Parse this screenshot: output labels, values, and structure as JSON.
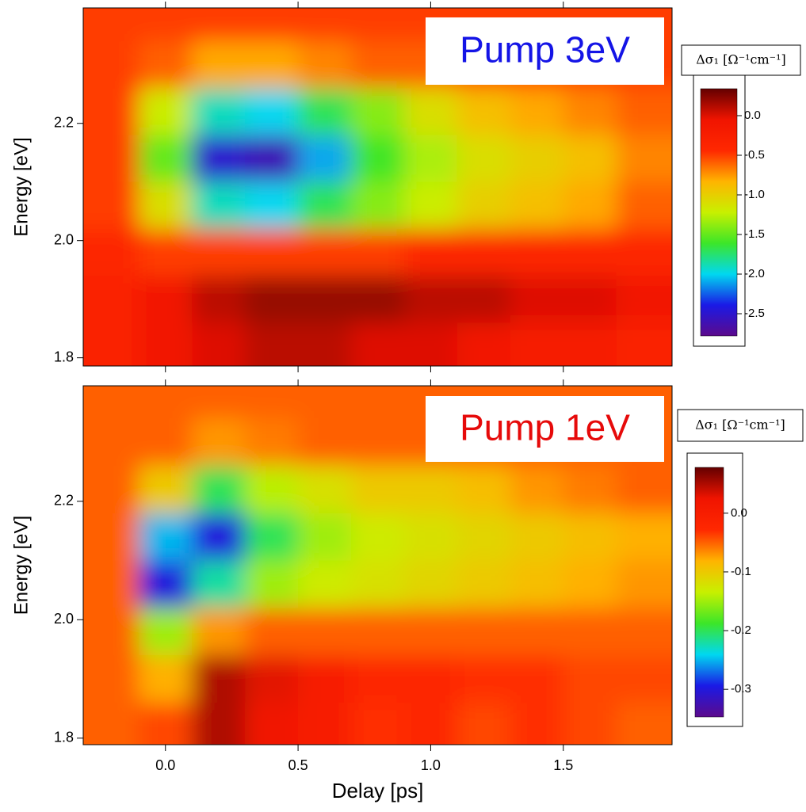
{
  "chart_data": [
    {
      "type": "heatmap",
      "ylabel": "Energy [eV]",
      "annotation": "Pump 3eV",
      "annotation_color": "#1414e6",
      "x": [
        -0.2,
        0,
        0.2,
        0.4,
        0.6,
        0.8,
        1.0,
        1.2,
        1.4,
        1.6,
        1.8
      ],
      "y": [
        1.82,
        1.9,
        1.98,
        2.06,
        2.14,
        2.22,
        2.3,
        2.38
      ],
      "z": [
        [
          -0.3,
          -0.1,
          0.0,
          0.1,
          0.1,
          0.0,
          0.0,
          -0.1,
          -0.2,
          -0.2,
          -0.3
        ],
        [
          -0.3,
          -0.1,
          0.1,
          0.2,
          0.2,
          0.2,
          0.1,
          0.1,
          0.0,
          0.0,
          -0.1
        ],
        [
          -0.4,
          -0.5,
          -0.5,
          -0.5,
          -0.5,
          -0.5,
          -0.4,
          -0.4,
          -0.4,
          -0.4,
          -0.4
        ],
        [
          -0.5,
          -1.1,
          -1.9,
          -2.0,
          -1.7,
          -1.4,
          -1.2,
          -1.0,
          -0.9,
          -0.8,
          -0.6
        ],
        [
          -0.5,
          -1.5,
          -2.5,
          -2.6,
          -2.1,
          -1.6,
          -1.3,
          -1.1,
          -1.0,
          -0.9,
          -0.7
        ],
        [
          -0.5,
          -1.2,
          -1.9,
          -2.0,
          -1.7,
          -1.4,
          -1.1,
          -0.9,
          -0.8,
          -0.7,
          -0.6
        ],
        [
          -0.5,
          -0.6,
          -0.8,
          -0.8,
          -0.7,
          -0.6,
          -0.6,
          -0.5,
          -0.5,
          -0.5,
          -0.5
        ],
        [
          -0.5,
          -0.5,
          -0.5,
          -0.5,
          -0.5,
          -0.5,
          -0.5,
          -0.5,
          -0.5,
          -0.5,
          -0.5
        ]
      ],
      "xlim": [
        -0.31,
        1.91
      ],
      "ylim": [
        1.786,
        2.397
      ],
      "xticks": [
        {
          "value": 0,
          "label": "0.0"
        },
        0.5,
        {
          "value": 1,
          "label": "1.0"
        },
        1.5
      ],
      "xticklabels": false,
      "yticks": [
        1.8,
        {
          "value": 2,
          "label": "2.0"
        },
        2.2
      ],
      "colormap": [
        "#5c0a8c",
        "#1a1ae6",
        "#00d8f0",
        "#3ce628",
        "#c8f000",
        "#ffb400",
        "#ff2800",
        "#f01400",
        "#640000"
      ],
      "colorbar": {
        "label": "Δσ₁ [Ω⁻¹cm⁻¹]",
        "zlim": [
          -2.78,
          0.34
        ],
        "ticks": [
          {
            "value": 0,
            "label": "0.0"
          },
          -0.5,
          {
            "value": -1,
            "label": "-1.0"
          },
          -1.5,
          {
            "value": -2,
            "label": "-2.0"
          },
          -2.5
        ]
      }
    },
    {
      "type": "heatmap",
      "ylabel": "Energy [eV]",
      "xlabel": "Delay [ps]",
      "annotation": "Pump 1eV",
      "annotation_color": "#e60a0a",
      "x": [
        -0.2,
        0,
        0.2,
        0.4,
        0.6,
        0.8,
        1.0,
        1.2,
        1.4,
        1.6,
        1.8
      ],
      "y": [
        1.82,
        1.9,
        1.98,
        2.06,
        2.14,
        2.22,
        2.3,
        2.38
      ],
      "z": [
        [
          -0.05,
          -0.04,
          0.05,
          0.02,
          0.0,
          -0.03,
          -0.02,
          -0.04,
          -0.03,
          -0.04,
          -0.05
        ],
        [
          -0.05,
          -0.08,
          0.05,
          0.03,
          0.0,
          -0.02,
          -0.02,
          -0.03,
          -0.03,
          -0.04,
          -0.04
        ],
        [
          -0.05,
          -0.15,
          -0.07,
          -0.05,
          -0.05,
          -0.05,
          -0.05,
          -0.05,
          -0.05,
          -0.05,
          -0.05
        ],
        [
          -0.05,
          -0.3,
          -0.22,
          -0.15,
          -0.13,
          -0.12,
          -0.11,
          -0.1,
          -0.09,
          -0.08,
          -0.07
        ],
        [
          -0.05,
          -0.25,
          -0.3,
          -0.2,
          -0.15,
          -0.13,
          -0.12,
          -0.11,
          -0.1,
          -0.09,
          -0.08
        ],
        [
          -0.05,
          -0.1,
          -0.2,
          -0.14,
          -0.12,
          -0.1,
          -0.1,
          -0.09,
          -0.07,
          -0.06,
          -0.05
        ],
        [
          -0.05,
          -0.05,
          -0.07,
          -0.06,
          -0.05,
          -0.05,
          -0.05,
          -0.05,
          -0.05,
          -0.05,
          -0.05
        ],
        [
          -0.05,
          -0.05,
          -0.05,
          -0.05,
          -0.05,
          -0.05,
          -0.05,
          -0.05,
          -0.05,
          -0.05,
          -0.05
        ]
      ],
      "xlim": [
        -0.31,
        1.91
      ],
      "ylim": [
        1.789,
        2.395
      ],
      "xticks": [
        {
          "value": 0,
          "label": "0.0"
        },
        0.5,
        {
          "value": 1,
          "label": "1.0"
        },
        1.5
      ],
      "xticklabels": true,
      "yticks": [
        1.8,
        {
          "value": 2,
          "label": "2.0"
        },
        2.2
      ],
      "colormap": [
        "#5c0a8c",
        "#1a1ae6",
        "#00d8f0",
        "#3ce628",
        "#c8f000",
        "#ffb400",
        "#ff2800",
        "#f01400",
        "#640000"
      ],
      "colorbar": {
        "label": "Δσ₁ [Ω⁻¹cm⁻¹]",
        "zlim": [
          -0.347,
          0.078
        ],
        "ticks": [
          {
            "value": 0,
            "label": "0.0"
          },
          -0.1,
          -0.2,
          -0.3
        ]
      }
    }
  ]
}
